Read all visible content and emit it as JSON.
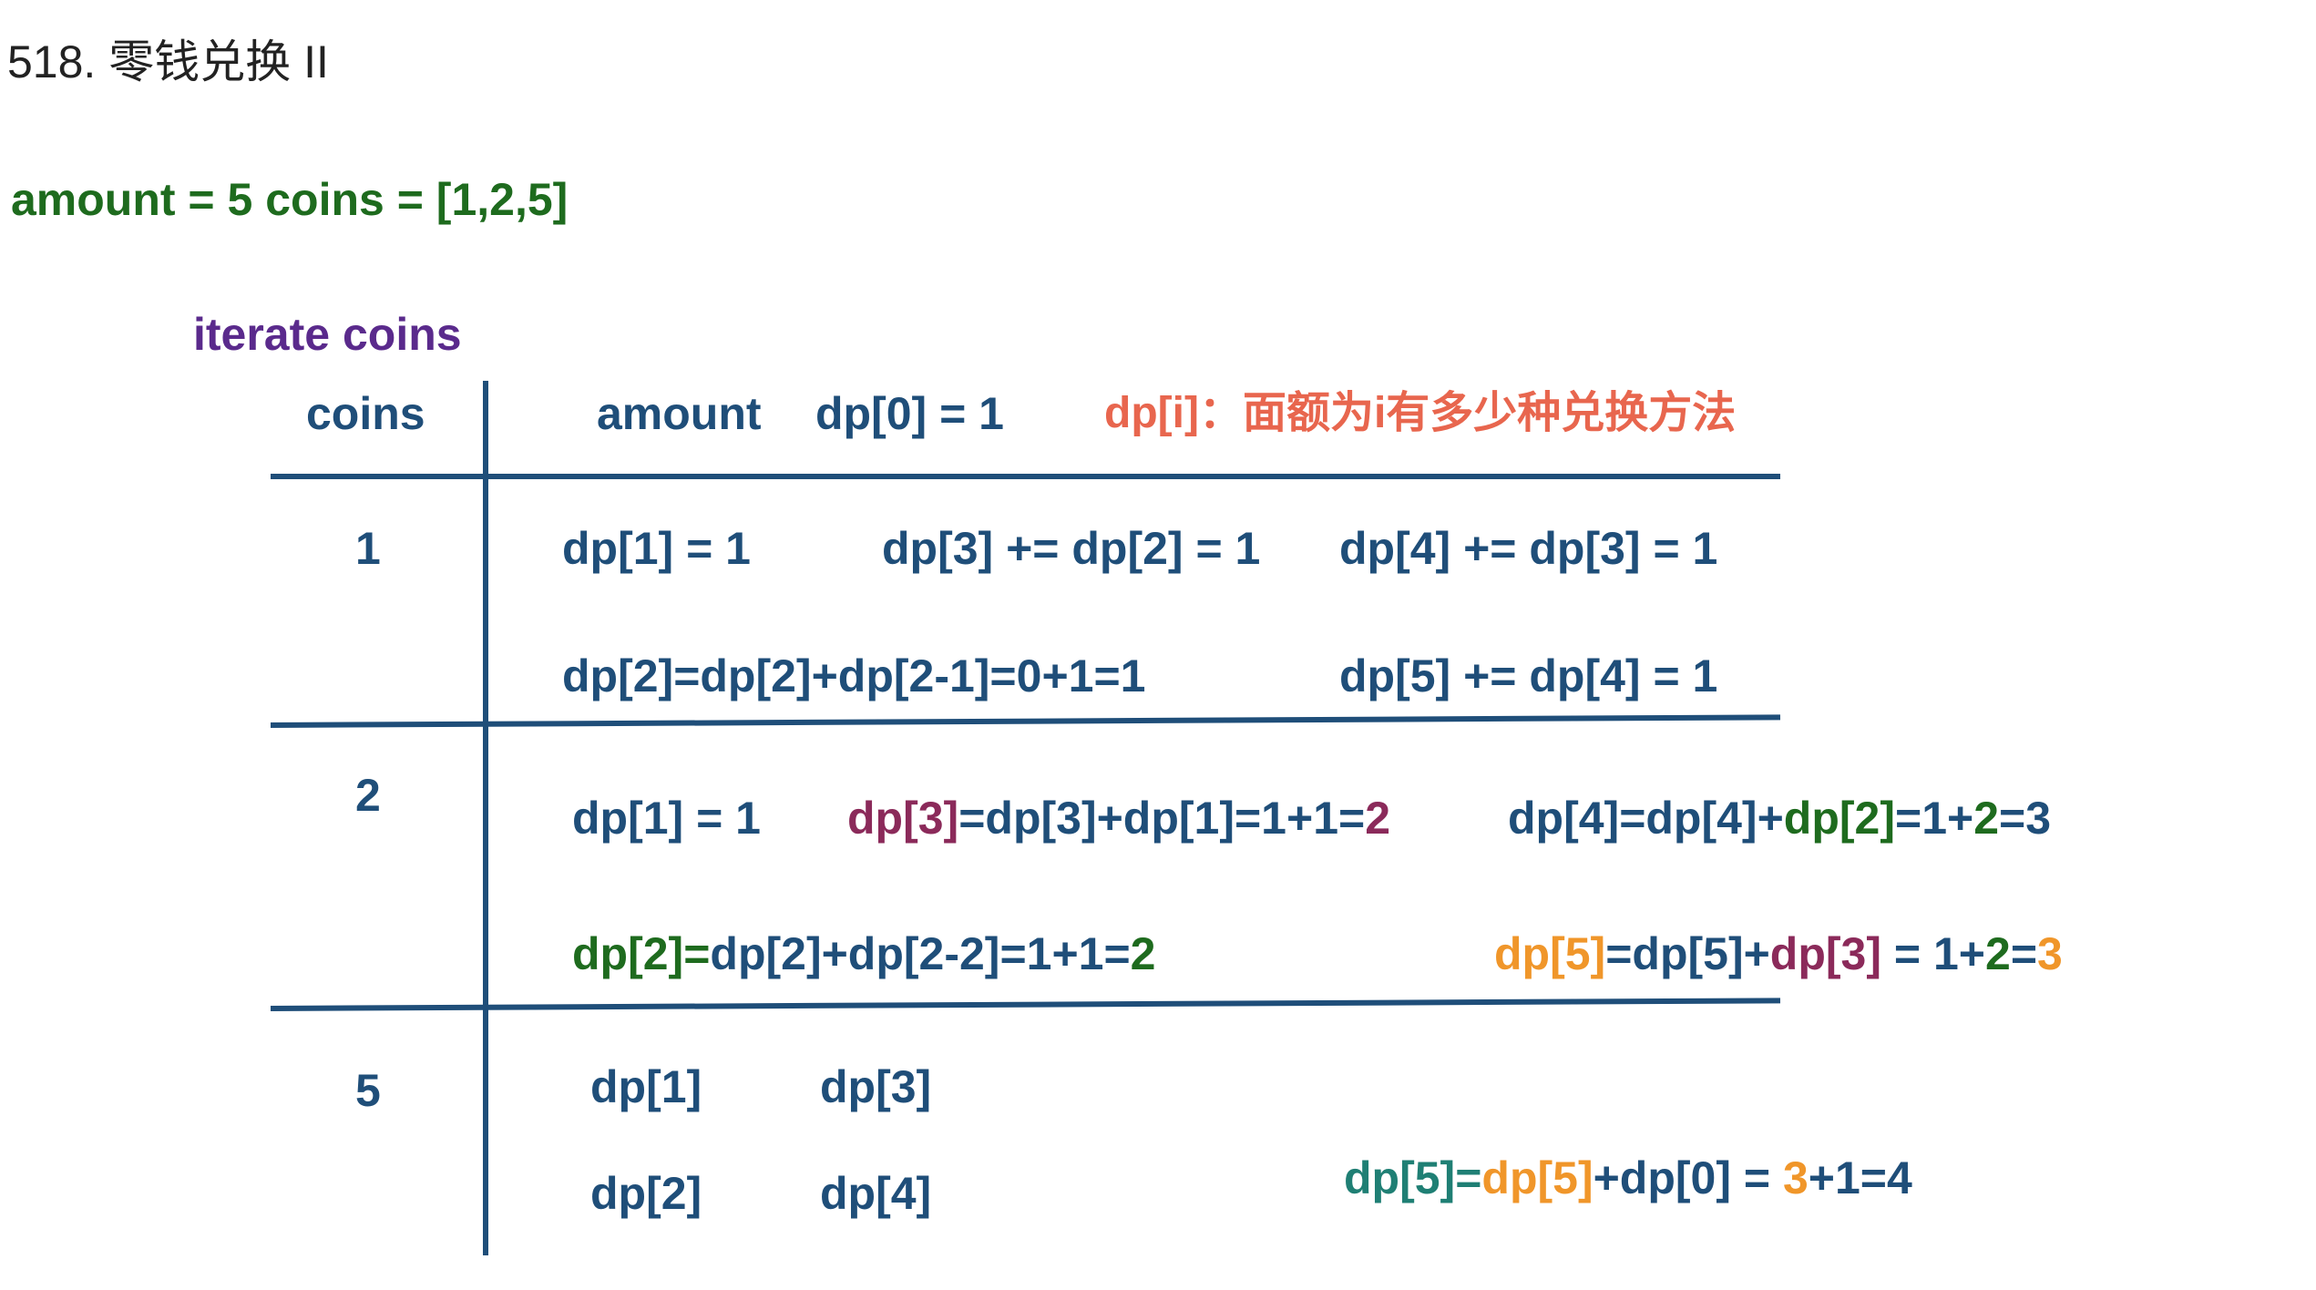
{
  "title": "518. 零钱兑换 II",
  "problem": "amount = 5  coins = [1,2,5]",
  "section_label": "iterate coins",
  "header": {
    "coins": "coins",
    "amount": "amount",
    "dp0": "dp[0] = 1",
    "definition": "dp[i]：面额为i有多少种兑换方法"
  },
  "rows": [
    {
      "coin": "1",
      "cells": {
        "a": "dp[1] = 1",
        "b": "dp[3] += dp[2] = 1",
        "c": "dp[4] += dp[3] = 1",
        "d": "dp[2]=dp[2]+dp[2-1]=0+1=1",
        "e": "dp[5] += dp[4] = 1"
      }
    },
    {
      "coin": "2",
      "cells": {
        "a": "dp[1] = 1",
        "b": [
          "dp[3]",
          "=dp[3]+dp[1]=1+1=",
          "2"
        ],
        "c": [
          "dp[4]=dp[4]+",
          "dp[2]",
          "=1+",
          "2",
          "=3"
        ],
        "d": [
          "dp[2]=",
          "dp[2]+dp[2-2]=1+1=",
          "2"
        ],
        "e": [
          "dp[5]",
          "=dp[5]+",
          "dp[3]",
          " = 1+",
          "2",
          "=",
          "3"
        ]
      }
    },
    {
      "coin": "5",
      "cells": {
        "a": "dp[1]",
        "b": "dp[3]",
        "c": "dp[2]",
        "d": "dp[4]",
        "e": [
          "dp[5]=",
          "dp[5]",
          "+dp[0] = ",
          "3",
          "+1=4"
        ]
      }
    }
  ],
  "colors": {
    "navy": "#1f4e79",
    "green": "#1e6b1e",
    "purple": "#5a2a8c",
    "salmon": "#e8664e",
    "magenta": "#8b2a5a",
    "orange": "#f0962a",
    "teal": "#1f7f74"
  }
}
